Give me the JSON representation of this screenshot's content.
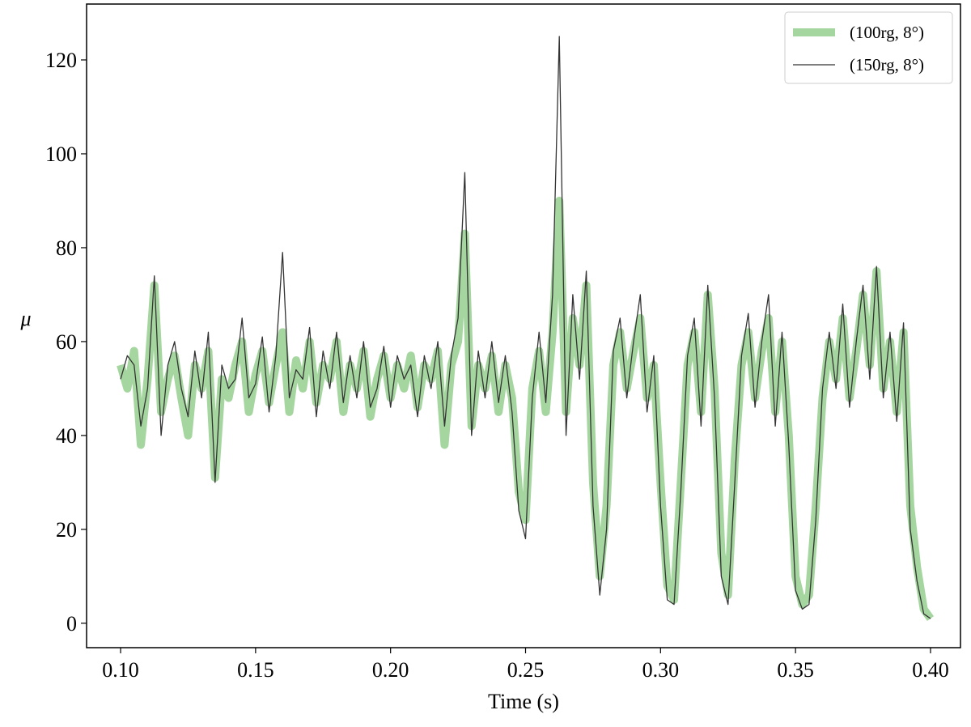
{
  "chart_data": {
    "type": "line",
    "x_label": "Time (s)",
    "y_label": "μ",
    "x": [
      0.1,
      0.1025,
      0.105,
      0.1075,
      0.11,
      0.1125,
      0.115,
      0.1175,
      0.12,
      0.1225,
      0.125,
      0.1275,
      0.13,
      0.1325,
      0.135,
      0.1375,
      0.14,
      0.1425,
      0.145,
      0.1475,
      0.15,
      0.1525,
      0.155,
      0.1575,
      0.16,
      0.1625,
      0.165,
      0.1675,
      0.17,
      0.1725,
      0.175,
      0.1775,
      0.18,
      0.1825,
      0.185,
      0.1875,
      0.19,
      0.1925,
      0.195,
      0.1975,
      0.2,
      0.2025,
      0.205,
      0.2075,
      0.21,
      0.2125,
      0.215,
      0.2175,
      0.22,
      0.2225,
      0.225,
      0.2275,
      0.23,
      0.2325,
      0.235,
      0.2375,
      0.24,
      0.2425,
      0.245,
      0.2475,
      0.25,
      0.2525,
      0.255,
      0.2575,
      0.26,
      0.2625,
      0.265,
      0.2675,
      0.27,
      0.2725,
      0.275,
      0.2775,
      0.28,
      0.2825,
      0.285,
      0.2875,
      0.29,
      0.2925,
      0.295,
      0.2975,
      0.3,
      0.3025,
      0.305,
      0.3075,
      0.31,
      0.3125,
      0.315,
      0.3175,
      0.32,
      0.3225,
      0.325,
      0.3275,
      0.33,
      0.3325,
      0.335,
      0.3375,
      0.34,
      0.3425,
      0.345,
      0.3475,
      0.35,
      0.3525,
      0.355,
      0.3575,
      0.36,
      0.3625,
      0.365,
      0.3675,
      0.37,
      0.3725,
      0.375,
      0.3775,
      0.38,
      0.3825,
      0.385,
      0.3875,
      0.39,
      0.3925,
      0.395,
      0.3975,
      0.4
    ],
    "series": [
      {
        "name": "(100rg, 8°)",
        "color": "#a6d6a0",
        "values": [
          55,
          50,
          58,
          38,
          52,
          72,
          45,
          52,
          57,
          48,
          40,
          55,
          50,
          58,
          31,
          52,
          48,
          55,
          60,
          45,
          53,
          58,
          47,
          55,
          62,
          45,
          56,
          50,
          60,
          47,
          55,
          52,
          60,
          45,
          55,
          50,
          58,
          44,
          52,
          57,
          48,
          55,
          50,
          57,
          46,
          55,
          52,
          58,
          38,
          55,
          60,
          83,
          42,
          55,
          50,
          57,
          45,
          55,
          48,
          28,
          22,
          50,
          58,
          45,
          62,
          90,
          45,
          65,
          55,
          72,
          30,
          10,
          25,
          55,
          62,
          50,
          58,
          65,
          48,
          55,
          30,
          8,
          5,
          30,
          55,
          62,
          45,
          70,
          50,
          15,
          6,
          35,
          55,
          62,
          48,
          58,
          65,
          45,
          60,
          40,
          10,
          4,
          6,
          25,
          48,
          60,
          52,
          65,
          48,
          58,
          70,
          55,
          75,
          50,
          60,
          45,
          62,
          25,
          12,
          3,
          1
        ]
      },
      {
        "name": "(150rg, 8°)",
        "color": "#333333",
        "values": [
          52,
          57,
          55,
          42,
          50,
          74,
          40,
          55,
          60,
          50,
          44,
          58,
          48,
          62,
          30,
          55,
          50,
          52,
          65,
          48,
          51,
          61,
          45,
          57,
          79,
          48,
          54,
          52,
          63,
          44,
          58,
          50,
          62,
          47,
          57,
          48,
          60,
          46,
          50,
          59,
          46,
          57,
          52,
          55,
          44,
          57,
          50,
          60,
          42,
          57,
          65,
          96,
          40,
          58,
          48,
          60,
          47,
          57,
          45,
          24,
          18,
          48,
          62,
          47,
          70,
          125,
          40,
          70,
          52,
          75,
          25,
          6,
          20,
          58,
          65,
          48,
          60,
          70,
          45,
          57,
          25,
          5,
          4,
          28,
          57,
          65,
          42,
          72,
          48,
          10,
          4,
          30,
          57,
          66,
          46,
          60,
          70,
          42,
          62,
          38,
          7,
          3,
          4,
          22,
          50,
          62,
          50,
          68,
          46,
          60,
          72,
          52,
          76,
          48,
          62,
          43,
          64,
          20,
          9,
          2,
          1
        ]
      }
    ],
    "xlim": [
      0.0874,
      0.4111
    ],
    "ylim": [
      -5.2,
      131.9
    ],
    "xticks": [
      {
        "value": 0.1,
        "label": "0.10"
      },
      {
        "value": 0.15,
        "label": "0.15"
      },
      {
        "value": 0.2,
        "label": "0.20"
      },
      {
        "value": 0.25,
        "label": "0.25"
      },
      {
        "value": 0.3,
        "label": "0.30"
      },
      {
        "value": 0.35,
        "label": "0.35"
      },
      {
        "value": 0.4,
        "label": "0.40"
      }
    ],
    "yticks": [
      0,
      20,
      40,
      60,
      80,
      100,
      120
    ],
    "legend": "upper right"
  }
}
